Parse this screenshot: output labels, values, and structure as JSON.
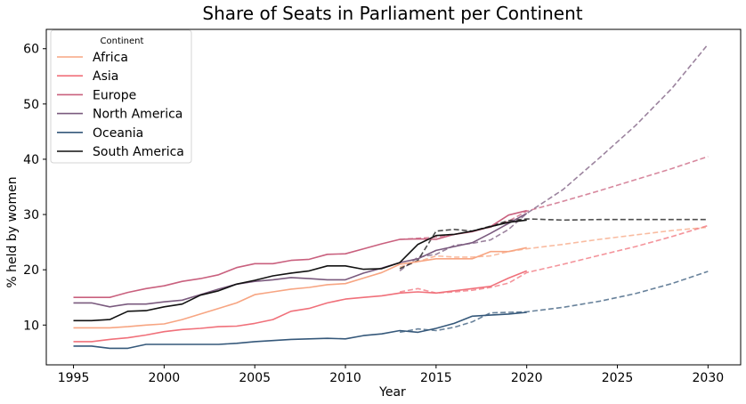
{
  "chart_data": {
    "type": "line",
    "title": "Share of Seats in Parliament per Continent",
    "xlabel": "Year",
    "ylabel": "% held by women",
    "xlim": [
      1993.5,
      2031.8
    ],
    "ylim": [
      2.8,
      63.5
    ],
    "xticks": [
      1995,
      2000,
      2005,
      2010,
      2015,
      2020,
      2025,
      2030
    ],
    "yticks": [
      10,
      20,
      30,
      40,
      50,
      60
    ],
    "grid": false,
    "legend": {
      "title": "Continent",
      "placement": "top-left"
    },
    "x": [
      1995,
      1996,
      1997,
      1998,
      1999,
      2000,
      2001,
      2002,
      2003,
      2004,
      2005,
      2006,
      2007,
      2008,
      2009,
      2010,
      2011,
      2012,
      2013,
      2014,
      2015,
      2016,
      2017,
      2018,
      2019,
      2020
    ],
    "series": [
      {
        "name": "Africa",
        "color": "#f7a582",
        "values": [
          9.5,
          9.5,
          9.5,
          9.7,
          10.0,
          10.2,
          11.0,
          12.0,
          13.0,
          14.0,
          15.5,
          16.0,
          16.5,
          16.8,
          17.3,
          17.5,
          18.5,
          19.5,
          21.0,
          21.5,
          22.0,
          22.0,
          22.0,
          23.3,
          23.3,
          24.0
        ],
        "projection_x": [
          2013,
          2014,
          2015,
          2016,
          2017,
          2018,
          2019,
          2020,
          2022,
          2024,
          2026,
          2028,
          2030
        ],
        "projection": [
          20.5,
          21.5,
          22.5,
          22.3,
          22.3,
          22.5,
          23.3,
          23.8,
          24.6,
          25.5,
          26.3,
          27.1,
          27.7
        ]
      },
      {
        "name": "Asia",
        "color": "#f0707a",
        "values": [
          7.0,
          7.0,
          7.4,
          7.7,
          8.2,
          8.8,
          9.2,
          9.4,
          9.7,
          9.8,
          10.3,
          11.0,
          12.5,
          13.0,
          14.0,
          14.7,
          15.0,
          15.3,
          15.8,
          16.0,
          15.8,
          16.2,
          16.6,
          17.0,
          18.5,
          19.8
        ],
        "projection_x": [
          2013,
          2014,
          2015,
          2016,
          2017,
          2018,
          2019,
          2020,
          2022,
          2024,
          2026,
          2028,
          2030
        ],
        "projection": [
          16.0,
          16.6,
          15.8,
          16.0,
          16.3,
          16.8,
          17.6,
          19.5,
          21.0,
          22.6,
          24.2,
          26.0,
          28.0
        ]
      },
      {
        "name": "Europe",
        "color": "#c9607e",
        "values": [
          15.0,
          15.0,
          15.0,
          15.9,
          16.6,
          17.1,
          17.9,
          18.4,
          19.1,
          20.4,
          21.1,
          21.1,
          21.7,
          21.9,
          22.8,
          22.9,
          23.8,
          24.7,
          25.5,
          25.6,
          25.5,
          26.4,
          26.9,
          27.8,
          29.9,
          30.7
        ],
        "projection_x": [
          2013,
          2014,
          2015,
          2016,
          2017,
          2018,
          2019,
          2020,
          2022,
          2024,
          2026,
          2028,
          2030
        ],
        "projection": [
          25.5,
          25.7,
          25.9,
          26.4,
          27.0,
          27.7,
          28.8,
          30.6,
          32.4,
          34.3,
          36.3,
          38.3,
          40.5
        ]
      },
      {
        "name": "North America",
        "color": "#7a5a7e",
        "values": [
          14.0,
          14.0,
          13.3,
          13.8,
          13.8,
          14.2,
          14.5,
          15.5,
          16.5,
          17.4,
          17.9,
          18.2,
          18.6,
          18.4,
          18.2,
          18.2,
          19.4,
          20.3,
          21.3,
          22.0,
          23.5,
          24.2,
          24.9,
          26.6,
          28.4,
          30.2
        ],
        "projection_x": [
          2013,
          2014,
          2015,
          2016,
          2017,
          2018,
          2019,
          2020,
          2022,
          2024,
          2026,
          2028,
          2030
        ],
        "projection": [
          19.8,
          22.3,
          22.8,
          24.4,
          24.8,
          25.4,
          27.3,
          30.2,
          34.5,
          40.2,
          46.1,
          52.8,
          60.8
        ]
      },
      {
        "name": "Oceania",
        "color": "#35587a",
        "values": [
          6.2,
          6.2,
          5.8,
          5.8,
          6.5,
          6.5,
          6.5,
          6.5,
          6.5,
          6.7,
          7.0,
          7.2,
          7.4,
          7.5,
          7.6,
          7.5,
          8.1,
          8.4,
          9.0,
          8.7,
          9.4,
          10.3,
          11.6,
          11.8,
          12.0,
          12.3
        ],
        "projection_x": [
          2013,
          2014,
          2015,
          2016,
          2017,
          2018,
          2019,
          2020,
          2022,
          2024,
          2026,
          2028,
          2030
        ],
        "projection": [
          8.7,
          9.3,
          9.0,
          9.6,
          10.6,
          12.2,
          12.3,
          12.4,
          13.2,
          14.3,
          15.7,
          17.5,
          19.7
        ]
      },
      {
        "name": "South America",
        "color": "#111111",
        "values": [
          10.8,
          10.8,
          11.0,
          12.5,
          12.6,
          13.3,
          13.8,
          15.4,
          16.2,
          17.4,
          18.1,
          18.9,
          19.4,
          19.8,
          20.7,
          20.7,
          20.1,
          20.2,
          21.3,
          24.6,
          26.2,
          26.4,
          27.0,
          27.8,
          28.6,
          29.0
        ],
        "projection_x": [
          2013,
          2014,
          2015,
          2016,
          2017,
          2018,
          2019,
          2020,
          2022,
          2024,
          2026,
          2028,
          2030
        ],
        "projection": [
          20.2,
          21.7,
          27.0,
          27.3,
          27.0,
          27.9,
          28.9,
          29.2,
          29.0,
          29.1,
          29.1,
          29.1,
          29.1
        ]
      }
    ]
  }
}
